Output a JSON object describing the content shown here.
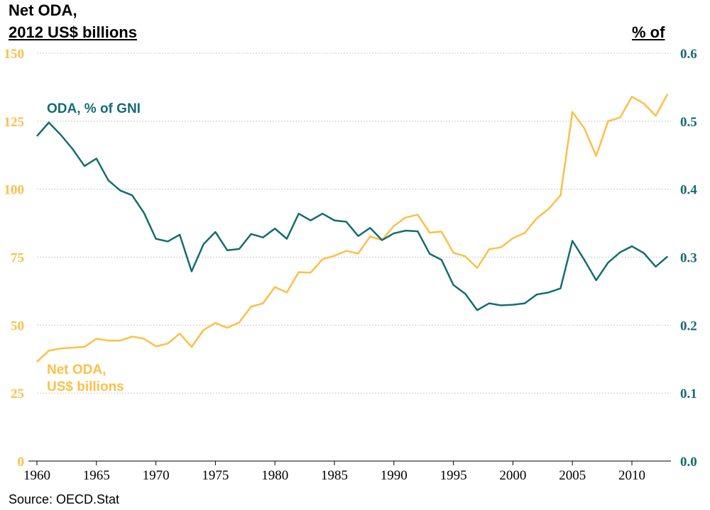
{
  "chart_data": {
    "type": "line",
    "title_left_line1": "Net ODA,",
    "title_left_line2": "2012 US$ billions",
    "title_right": "% of",
    "source": "Source: OECD.Stat",
    "x": [
      1960,
      1961,
      1962,
      1963,
      1964,
      1965,
      1966,
      1967,
      1968,
      1969,
      1970,
      1971,
      1972,
      1973,
      1974,
      1975,
      1976,
      1977,
      1978,
      1979,
      1980,
      1981,
      1982,
      1983,
      1984,
      1985,
      1986,
      1987,
      1988,
      1989,
      1990,
      1991,
      1992,
      1993,
      1994,
      1995,
      1996,
      1997,
      1998,
      1999,
      2000,
      2001,
      2002,
      2003,
      2004,
      2005,
      2006,
      2007,
      2008,
      2009,
      2010,
      2011,
      2012,
      2013
    ],
    "xlim": [
      1960,
      2015
    ],
    "xticks": [
      "1960",
      "1965",
      "1970",
      "1975",
      "1980",
      "1985",
      "1990",
      "1995",
      "2000",
      "2005",
      "2010"
    ],
    "left_axis": {
      "ylim": [
        0,
        150
      ],
      "ticks": [
        "0",
        "25",
        "50",
        "75",
        "100",
        "125",
        "150"
      ],
      "color": "#FDBF47"
    },
    "right_axis": {
      "ylim": [
        0,
        0.6
      ],
      "ticks": [
        "0.0",
        "0.1",
        "0.2",
        "0.3",
        "0.4",
        "0.5",
        "0.6"
      ],
      "color": "#156C73"
    },
    "grid": true,
    "series": [
      {
        "name": "Net ODA,",
        "name_line2": "US$ billions",
        "axis": "left",
        "color": "#FDBF47",
        "values": [
          36.5,
          40.6,
          41.4,
          41.7,
          42,
          45,
          44.3,
          44.3,
          45.8,
          45,
          42.2,
          43.2,
          46.9,
          42,
          48.2,
          50.8,
          49,
          51,
          56.8,
          58,
          64,
          62,
          69.5,
          69.3,
          74.2,
          75.5,
          77.3,
          76.3,
          82.6,
          81.3,
          86.5,
          89.6,
          90.6,
          84,
          84.4,
          76.6,
          75.3,
          71,
          77.9,
          78.6,
          82,
          83.9,
          89.3,
          92.7,
          97.7,
          128.4,
          122.4,
          112.2,
          125,
          126.3,
          134,
          131.5,
          127,
          135
        ]
      },
      {
        "name": "ODA, % of GNI",
        "axis": "right",
        "color": "#156C73",
        "values": [
          0.478,
          0.498,
          0.48,
          0.459,
          0.434,
          0.445,
          0.413,
          0.398,
          0.391,
          0.365,
          0.327,
          0.323,
          0.333,
          0.279,
          0.319,
          0.337,
          0.31,
          0.312,
          0.334,
          0.329,
          0.342,
          0.327,
          0.364,
          0.354,
          0.364,
          0.354,
          0.352,
          0.331,
          0.343,
          0.325,
          0.335,
          0.339,
          0.338,
          0.305,
          0.296,
          0.259,
          0.246,
          0.222,
          0.232,
          0.229,
          0.23,
          0.232,
          0.245,
          0.248,
          0.254,
          0.324,
          0.296,
          0.266,
          0.292,
          0.307,
          0.316,
          0.306,
          0.286,
          0.301
        ]
      }
    ]
  }
}
